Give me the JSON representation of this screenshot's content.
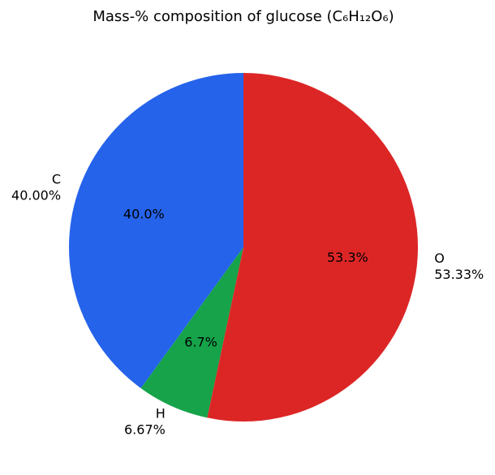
{
  "chart_data": {
    "type": "pie",
    "title": "Mass-% composition of glucose (C₆H₁₂O₆)",
    "categories": [
      "C",
      "H",
      "O"
    ],
    "values": [
      40.0,
      6.67,
      53.33
    ],
    "value_labels": [
      "40.00%",
      "6.67%",
      "53.33%"
    ],
    "pct_labels": [
      "40.0%",
      "6.7%",
      "53.3%"
    ],
    "colors": [
      "#2563eb",
      "#16a34a",
      "#dc2626"
    ]
  }
}
